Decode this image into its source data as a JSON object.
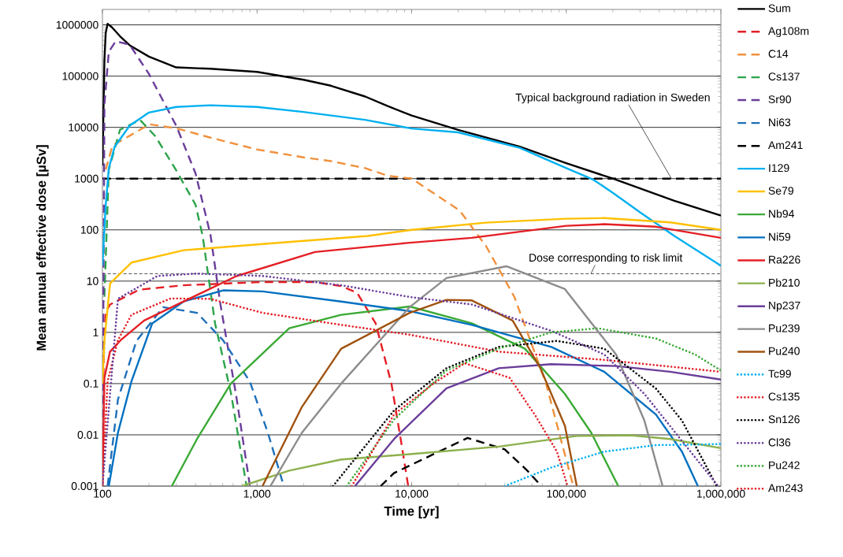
{
  "chart_data": {
    "type": "line",
    "xlabel": "Time [yr]",
    "ylabel": "Mean annual effective dose [µSv]",
    "log": "xy",
    "grid": "y",
    "legend": "right",
    "marker": "none",
    "xlim": [
      100,
      1000000
    ],
    "ylim": [
      0.001,
      2000000
    ],
    "xticks": [
      100,
      {
        "value": 1000,
        "label": "1,000"
      },
      {
        "value": 10000,
        "label": "10,000"
      },
      {
        "value": 100000,
        "label": "100,000"
      },
      {
        "value": 1000000,
        "label": "1,000,000"
      }
    ],
    "yticks": [
      0.001,
      0.01,
      0.1,
      1,
      10,
      100,
      1000,
      10000,
      100000,
      1000000
    ],
    "ref_lines": [
      {
        "axis": "y",
        "value": 1000,
        "label": "Typical background radiation in Sweden",
        "color": "#000000",
        "line_style": "dashed"
      },
      {
        "axis": "y",
        "value": 14,
        "label": "Dose corresponding to risk limit",
        "color": "#000000",
        "line_style": "dotted"
      }
    ],
    "series": [
      {
        "name": "Sum",
        "color": "#000000",
        "line_style": "solid",
        "x": [
          100,
          103,
          105,
          108,
          115,
          130,
          150,
          200,
          300,
          500,
          1000,
          2000,
          3000,
          5000,
          7000,
          10000,
          20000,
          50000,
          100000,
          200000,
          500000,
          1000000
        ],
        "values": [
          1800,
          200000,
          700000,
          1050000,
          900000,
          600000,
          400000,
          240000,
          148000,
          139000,
          121000,
          85000,
          65000,
          40000,
          26000,
          17000,
          8900,
          4200,
          2000,
          1000,
          370,
          190
        ]
      },
      {
        "name": "Ag108m",
        "color": "#e41f26",
        "line_style": "dashed",
        "x": [
          100,
          102,
          105,
          112,
          173,
          335,
          1085,
          2370,
          3500,
          4440,
          5850,
          7400,
          8650,
          9500
        ],
        "values": [
          0.001,
          0.5,
          2.5,
          3.5,
          6.8,
          8.3,
          9.6,
          9.6,
          8,
          5.9,
          1.5,
          0.1,
          0.0059,
          0.001
        ]
      },
      {
        "name": "C14",
        "color": "#f0913d",
        "line_style": "dashed",
        "x": [
          105,
          116,
          202,
          300,
          500,
          1000,
          2000,
          3000,
          5000,
          7000,
          10000,
          20400,
          30300,
          46200,
          74000,
          111000
        ],
        "values": [
          1500,
          4400,
          11500,
          9600,
          6300,
          3700,
          2600,
          2200,
          1600,
          1140,
          1000,
          240,
          48,
          4.9,
          0.1,
          0.001
        ]
      },
      {
        "name": "Cs137",
        "color": "#2ca34a",
        "line_style": "dashed",
        "x": [
          103,
          110,
          130,
          175,
          220,
          300,
          400,
          445,
          535,
          680,
          855
        ],
        "values": [
          5,
          1500,
          9000,
          14000,
          6700,
          1450,
          310,
          76,
          1.5,
          0.063,
          0.001
        ]
      },
      {
        "name": "Sr90",
        "color": "#6a3d9a",
        "line_style": "dashed",
        "x": [
          100,
          103,
          110,
          122,
          150,
          200,
          300,
          400,
          500,
          580,
          730,
          900
        ],
        "values": [
          0.001,
          28000,
          300000,
          480000,
          410000,
          110000,
          10800,
          1270,
          80,
          3.5,
          0.063,
          0.001
        ]
      },
      {
        "name": "Ni63",
        "color": "#1f6fb8",
        "line_style": "dashed",
        "x": [
          108,
          126,
          166,
          247,
          409,
          603,
          898,
          1175,
          1490
        ],
        "values": [
          0.001,
          0.049,
          0.68,
          3.1,
          2.4,
          0.7,
          0.11,
          0.011,
          0.001
        ]
      },
      {
        "name": "Am241",
        "color": "#000000",
        "line_style": "dashed",
        "x": [
          6300,
          7700,
          23000,
          40000,
          56000,
          69000
        ],
        "values": [
          0.001,
          0.0018,
          0.0087,
          0.0052,
          0.002,
          0.001
        ]
      },
      {
        "name": "I129",
        "color": "#00b0f0",
        "line_style": "solid",
        "x": [
          100,
          105,
          110,
          120,
          150,
          200,
          300,
          500,
          1000,
          2000,
          5000,
          10000,
          20000,
          50000,
          100000,
          150000,
          200000,
          300000,
          500000,
          1000000
        ],
        "values": [
          20,
          300,
          1600,
          4200,
          10800,
          19500,
          25000,
          27000,
          25000,
          20000,
          14000,
          9500,
          8000,
          4000,
          1600,
          950,
          530,
          220,
          76,
          20
        ]
      },
      {
        "name": "Se79",
        "color": "#ffc000",
        "line_style": "solid",
        "x": [
          100,
          103,
          112,
          154,
          335,
          1085,
          5200,
          10000,
          30000,
          100000,
          176000,
          470000,
          1000000
        ],
        "values": [
          0.1,
          0.68,
          9,
          23,
          40,
          53,
          76,
          100,
          138,
          165,
          170,
          140,
          100
        ]
      },
      {
        "name": "Nb94",
        "color": "#3aaa35",
        "line_style": "solid",
        "x": [
          281,
          409,
          677,
          1615,
          3500,
          9700,
          24500,
          54000,
          98000,
          145000,
          217000
        ],
        "values": [
          0.001,
          0.0083,
          0.1,
          1.2,
          2.2,
          3.2,
          1.5,
          0.48,
          0.063,
          0.011,
          0.001
        ]
      },
      {
        "name": "Ni59",
        "color": "#0070c0",
        "line_style": "solid",
        "x": [
          110,
          126,
          154,
          210,
          335,
          603,
          1085,
          3500,
          9700,
          24500,
          80000,
          176000,
          380000,
          560000,
          710000
        ],
        "values": [
          0.001,
          0.011,
          0.11,
          1.5,
          4,
          6.6,
          6.3,
          4,
          2.6,
          1.4,
          0.52,
          0.17,
          0.025,
          0.0047,
          0.001
        ]
      },
      {
        "name": "Ra226",
        "color": "#e41f26",
        "line_style": "solid",
        "x": [
          100,
          103,
          112,
          131,
          186,
          335,
          735,
          2370,
          9700,
          24500,
          100000,
          176000,
          380000,
          1000000
        ],
        "values": [
          0.001,
          0.13,
          0.42,
          0.7,
          1.7,
          4,
          12.5,
          37,
          56,
          70,
          120,
          129,
          115,
          70
        ]
      },
      {
        "name": "Pb210",
        "color": "#8db04d",
        "line_style": "solid",
        "x": [
          799,
          1615,
          3500,
          9700,
          36600,
          117000,
          260000,
          470000,
          1000000
        ],
        "values": [
          0.001,
          0.002,
          0.0033,
          0.0042,
          0.0059,
          0.0095,
          0.0098,
          0.0083,
          0.0055
        ]
      },
      {
        "name": "Np237",
        "color": "#6a3d9a",
        "line_style": "solid",
        "x": [
          4300,
          7700,
          16800,
          36600,
          80000,
          210000,
          470000,
          1000000
        ],
        "values": [
          0.001,
          0.0083,
          0.081,
          0.2,
          0.24,
          0.22,
          0.17,
          0.12
        ]
      },
      {
        "name": "Pu239",
        "color": "#8c8c8c",
        "line_style": "solid",
        "x": [
          1220,
          1950,
          3500,
          9700,
          16800,
          41000,
          98000,
          210000,
          320000,
          420000
        ],
        "values": [
          0.001,
          0.011,
          0.1,
          3.1,
          11.5,
          19.5,
          7,
          0.37,
          0.019,
          0.001
        ]
      },
      {
        "name": "Pu240",
        "color": "#a0520f",
        "line_style": "solid",
        "x": [
          1085,
          1950,
          3500,
          9700,
          16800,
          24500,
          45000,
          68000,
          98000,
          117000
        ],
        "values": [
          0.001,
          0.035,
          0.48,
          2.4,
          4.3,
          4.2,
          1.7,
          0.2,
          0.015,
          0.001
        ]
      },
      {
        "name": "Tc99",
        "color": "#00b0f0",
        "line_style": "dotted",
        "x": [
          40000,
          80000,
          176000,
          380000,
          1000000
        ],
        "values": [
          0.001,
          0.0023,
          0.0047,
          0.0063,
          0.0066
        ]
      },
      {
        "name": "Cs135",
        "color": "#e41f26",
        "line_style": "dotted",
        "x": [
          100,
          108,
          126,
          154,
          277,
          500,
          1085,
          3500,
          9700,
          36600,
          176000,
          1000000
        ],
        "values": [
          0.001,
          0.11,
          0.7,
          2.2,
          4.6,
          4.5,
          2.4,
          1.4,
          0.9,
          0.42,
          0.29,
          0.17
        ]
      },
      {
        "name": "Sn126",
        "color": "#000000",
        "line_style": "dotted",
        "x": [
          3100,
          7700,
          16800,
          36600,
          87000,
          176000,
          380000,
          560000,
          940000
        ],
        "values": [
          0.001,
          0.03,
          0.2,
          0.52,
          0.68,
          0.48,
          0.08,
          0.019,
          0.001
        ]
      },
      {
        "name": "Cl36",
        "color": "#6a3d9a",
        "line_style": "dotted",
        "x": [
          100,
          126,
          227,
          409,
          1085,
          3500,
          9700,
          24500,
          80000,
          176000,
          320000,
          560000,
          960000
        ],
        "values": [
          0.001,
          4.5,
          12.6,
          14,
          12.6,
          8.3,
          4.9,
          3.5,
          1.07,
          0.37,
          0.063,
          0.0076,
          0.001
        ]
      },
      {
        "name": "Pu242",
        "color": "#3aaa35",
        "line_style": "dotted",
        "x": [
          3800,
          7700,
          16800,
          36600,
          80000,
          160000,
          380000,
          680000,
          1000000
        ],
        "values": [
          0.001,
          0.02,
          0.18,
          0.48,
          1,
          1.2,
          0.76,
          0.37,
          0.18
        ]
      },
      {
        "name": "Am243",
        "color": "#e41f26",
        "line_style": "dotted",
        "x": [
          4100,
          7700,
          13800,
          22000,
          43000,
          63000,
          87000,
          102000
        ],
        "values": [
          0.001,
          0.025,
          0.1,
          0.25,
          0.13,
          0.024,
          0.0047,
          0.001
        ]
      }
    ]
  }
}
